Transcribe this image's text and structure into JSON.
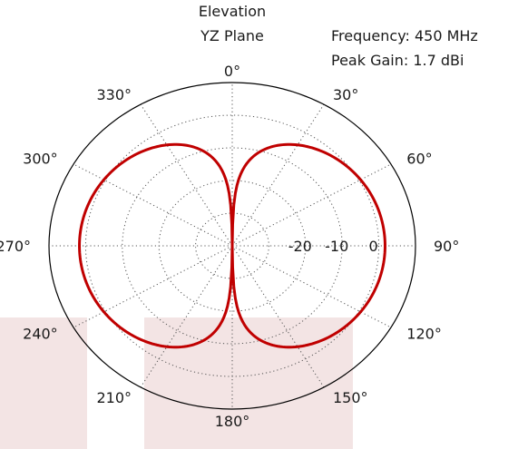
{
  "chart_data": {
    "type": "line",
    "projection": "polar",
    "title_lines": [
      "Elevation",
      "YZ Plane"
    ],
    "info_lines": [
      "Frequency: 450 MHz",
      "Peak Gain: 1.7 dBi"
    ],
    "angle_zero": "top",
    "angle_direction": "clockwise",
    "angle_ticks": [
      0,
      30,
      60,
      90,
      120,
      150,
      180,
      210,
      240,
      270,
      300,
      330
    ],
    "angle_tick_labels": [
      "0°",
      "30°",
      "60°",
      "90°",
      "120°",
      "150°",
      "180°",
      "210°",
      "240°",
      "270°",
      "300°",
      "330°"
    ],
    "radial_range_db": [
      -40,
      10
    ],
    "radial_ticks": [
      -30,
      -20,
      -10,
      0
    ],
    "radial_tick_labels": [
      "-20",
      "-10",
      "0"
    ],
    "grid": true,
    "series": [
      {
        "color": "#c00000",
        "pattern": "dipole cos-squared, peak 1.7 dBi at 90° and 270°",
        "peak_gain_dbi": 1.7
      }
    ]
  }
}
